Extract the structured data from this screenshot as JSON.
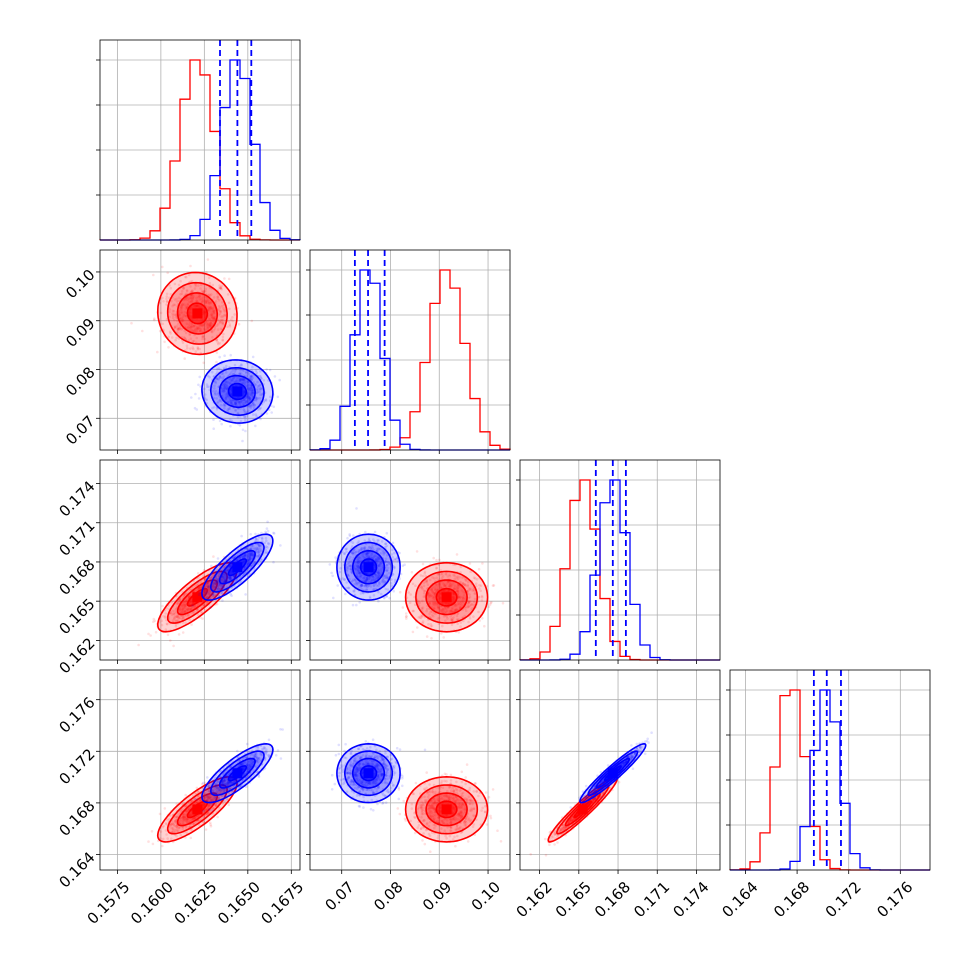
{
  "chart_data": {
    "type": "corner",
    "title": "",
    "grid": true,
    "colors": {
      "series_a": "#ff0000",
      "series_b": "#0000ff"
    },
    "params": [
      {
        "range": [
          0.1565,
          0.168
        ],
        "ticks": [
          0.1575,
          0.16,
          0.1625,
          0.165,
          0.1675
        ],
        "tick_labels": [
          "0.1575",
          "0.1600",
          "0.1625",
          "0.1650",
          "0.1675"
        ]
      },
      {
        "range": [
          0.0635,
          0.1045
        ],
        "ticks": [
          0.07,
          0.08,
          0.09,
          0.1
        ],
        "tick_labels": [
          "0.07",
          "0.08",
          "0.09",
          "0.10"
        ]
      },
      {
        "range": [
          0.1605,
          0.1758
        ],
        "ticks": [
          0.162,
          0.165,
          0.168,
          0.171,
          0.174
        ],
        "tick_labels": [
          "0.162",
          "0.165",
          "0.168",
          "0.171",
          "0.174"
        ]
      },
      {
        "range": [
          0.1628,
          0.1783
        ],
        "ticks": [
          0.164,
          0.168,
          0.172,
          0.176
        ],
        "tick_labels": [
          "0.164",
          "0.168",
          "0.172",
          "0.176"
        ]
      }
    ],
    "series": [
      {
        "color": "#ff0000",
        "mean": [
          0.1621,
          0.0915,
          0.1653,
          0.1675
        ],
        "std": [
          0.00095,
          0.0035,
          0.0011,
          0.00105
        ],
        "corr": [
          [
            1,
            -0.05,
            0.8,
            0.8
          ],
          [
            -0.05,
            1,
            0,
            0
          ],
          [
            0.8,
            0,
            1,
            0.95
          ],
          [
            0.8,
            0,
            0.95,
            1
          ]
        ],
        "hist_peak_x": [
          0.162,
          0.0912,
          0.165,
          0.1673
        ]
      },
      {
        "color": "#0000ff",
        "mean": [
          0.1644,
          0.0755,
          0.1676,
          0.1703
        ],
        "std": [
          0.00085,
          0.0027,
          0.00105,
          0.00095
        ],
        "corr": [
          [
            1,
            -0.05,
            0.8,
            0.8
          ],
          [
            -0.05,
            1,
            0,
            0
          ],
          [
            0.8,
            0,
            1,
            0.95
          ],
          [
            0.8,
            0,
            0.95,
            1
          ]
        ],
        "hist_peak_x": [
          0.1645,
          0.0755,
          0.1678,
          0.1705
        ],
        "quantiles": [
          [
            0.1634,
            0.1644,
            0.1652
          ],
          [
            0.0727,
            0.0754,
            0.0788
          ],
          [
            0.1663,
            0.1676,
            0.1686
          ],
          [
            0.1693,
            0.1703,
            0.1714
          ]
        ]
      }
    ]
  }
}
